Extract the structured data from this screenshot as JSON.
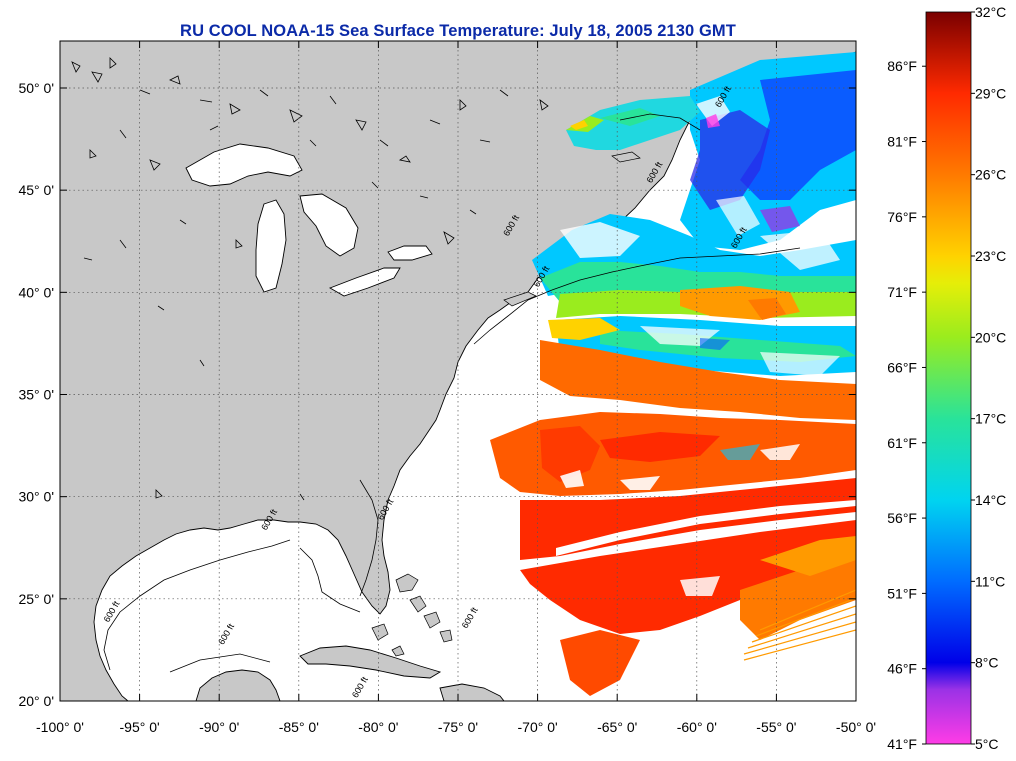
{
  "title": "RU COOL  NOAA-15  Sea Surface Temperature:  July 18, 2005 2130 GMT",
  "map": {
    "lon_range": [
      -100,
      -50
    ],
    "lat_range": [
      20,
      52.3
    ],
    "lon_ticks": [
      {
        "value": -100,
        "label": "-100° 0'"
      },
      {
        "value": -95,
        "label": "-95° 0'"
      },
      {
        "value": -90,
        "label": "-90° 0'"
      },
      {
        "value": -85,
        "label": "-85° 0'"
      },
      {
        "value": -80,
        "label": "-80° 0'"
      },
      {
        "value": -75,
        "label": "-75° 0'"
      },
      {
        "value": -70,
        "label": "-70° 0'"
      },
      {
        "value": -65,
        "label": "-65° 0'"
      },
      {
        "value": -60,
        "label": "-60° 0'"
      },
      {
        "value": -55,
        "label": "-55° 0'"
      },
      {
        "value": -50,
        "label": "-50° 0'"
      }
    ],
    "lat_ticks": [
      {
        "value": 50,
        "label": "50° 0'"
      },
      {
        "value": 45,
        "label": "45° 0'"
      },
      {
        "value": 40,
        "label": "40° 0'"
      },
      {
        "value": 35,
        "label": "35° 0'"
      },
      {
        "value": 30,
        "label": "30° 0'"
      },
      {
        "value": 25,
        "label": "25° 0'"
      },
      {
        "value": 20,
        "label": "20° 0'"
      }
    ],
    "grid": true,
    "land_color": "#c8c8c8",
    "isobath_label": "600 ft",
    "isobath_labels": [
      {
        "lon": -69.6,
        "lat": 40.7
      },
      {
        "lon": -71.5,
        "lat": 43.2
      },
      {
        "lon": -62.5,
        "lat": 45.8
      },
      {
        "lon": -58.2,
        "lat": 49.5
      },
      {
        "lon": -57.2,
        "lat": 42.6
      },
      {
        "lon": -79.4,
        "lat": 29.3
      },
      {
        "lon": -86.7,
        "lat": 28.8
      },
      {
        "lon": -89.4,
        "lat": 23.2
      },
      {
        "lon": -96.6,
        "lat": 24.3
      },
      {
        "lon": -81.0,
        "lat": 20.6
      },
      {
        "lon": -74.1,
        "lat": 24.0
      }
    ]
  },
  "colorbar": {
    "min_c": 5,
    "max_c": 32,
    "celsius_labels": [
      "32°C",
      "29°C",
      "26°C",
      "23°C",
      "20°C",
      "17°C",
      "14°C",
      "11°C",
      "8°C",
      "5°C"
    ],
    "fahrenheit_labels": [
      "86°F",
      "81°F",
      "76°F",
      "71°F",
      "66°F",
      "61°F",
      "56°F",
      "51°F",
      "46°F",
      "41°F"
    ],
    "colors": {
      "5": "#ff3ce6",
      "7": "#9b32e6",
      "8": "#0000e8",
      "11": "#006cff",
      "14": "#00d4f0",
      "17": "#29e39a",
      "20": "#9aec1e",
      "22": "#e6ee08",
      "23": "#ffd200",
      "26": "#ff7a00",
      "29": "#ff2a00",
      "32": "#7a0000"
    }
  }
}
